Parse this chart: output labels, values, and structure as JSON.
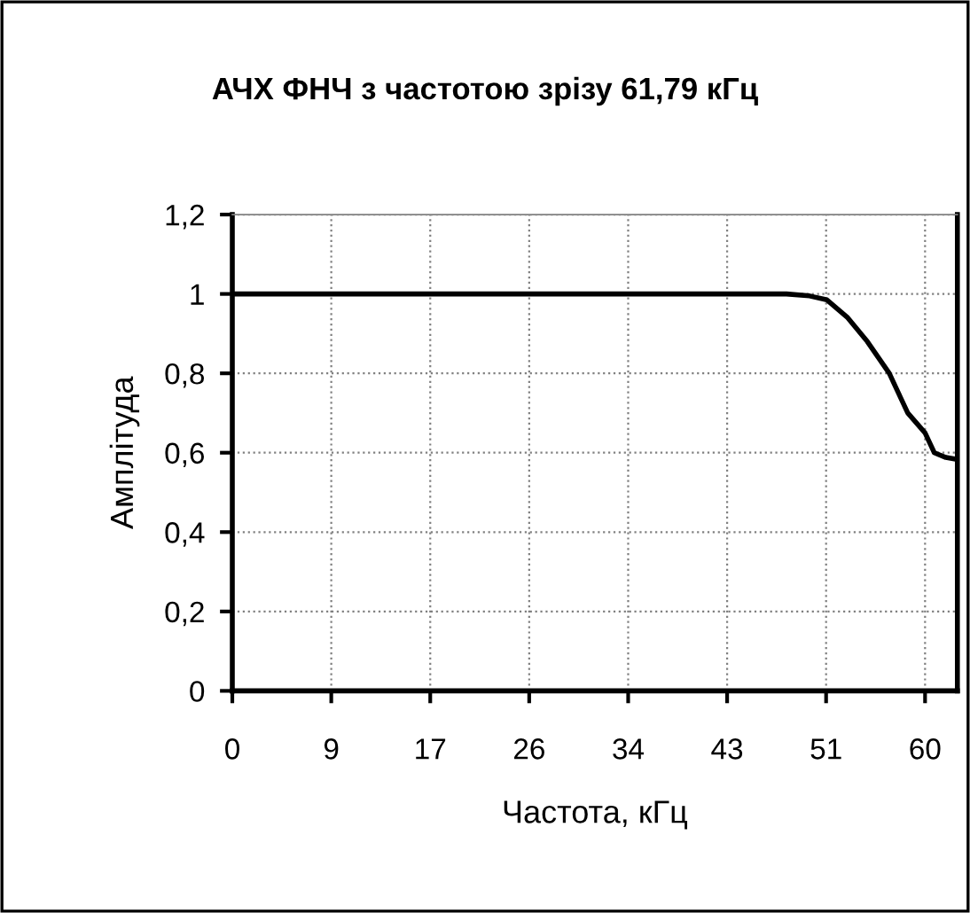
{
  "chart_data": {
    "type": "line",
    "title": "АЧХ ФНЧ з частотою зрізу 61,79 кГц",
    "xlabel": "Частота, кГц",
    "ylabel": "Амплітуда",
    "x": [
      0,
      48,
      50,
      51.5,
      53.3,
      55,
      56.9,
      58.5,
      60,
      60.8,
      61.8,
      62.8
    ],
    "series": [
      {
        "color": "#000000",
        "values": [
          1,
          1,
          0.995,
          0.985,
          0.94,
          0.88,
          0.8,
          0.7,
          0.65,
          0.6,
          0.588,
          0.583
        ]
      }
    ],
    "xlim": [
      0,
      62.8
    ],
    "xticks": [
      0,
      {
        "value": 8.571,
        "label": "9"
      },
      {
        "value": 17.143,
        "label": "17"
      },
      {
        "value": 25.714,
        "label": "26"
      },
      {
        "value": 34.286,
        "label": "34"
      },
      {
        "value": 42.857,
        "label": "43"
      },
      {
        "value": 51.429,
        "label": "51"
      },
      {
        "value": 60,
        "label": "60"
      }
    ],
    "ylim": [
      0,
      1.2
    ],
    "yticks": [
      0,
      {
        "value": 0.2,
        "label": "0,2"
      },
      {
        "value": 0.4,
        "label": "0,4"
      },
      {
        "value": 0.6,
        "label": "0,6"
      },
      {
        "value": 0.8,
        "label": "0,8"
      },
      1,
      {
        "value": 1.2,
        "label": "1,2"
      }
    ],
    "grid": true,
    "legend": false,
    "marker": "none",
    "line_style": "solid"
  }
}
